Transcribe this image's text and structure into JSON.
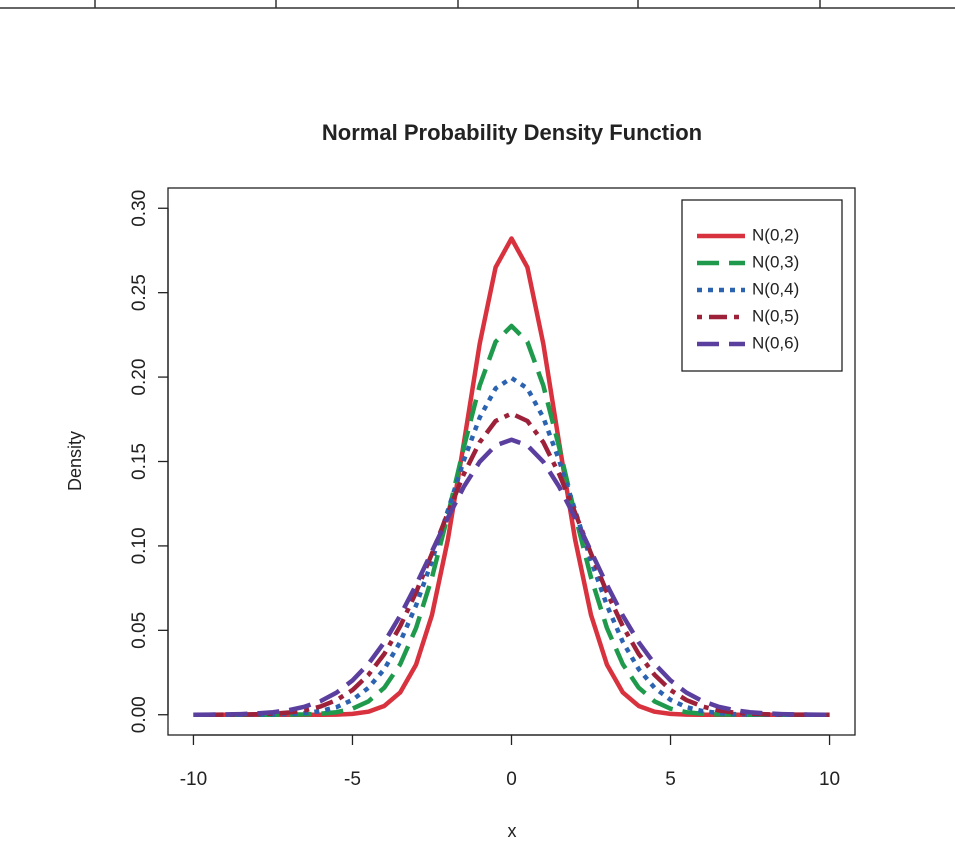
{
  "chart_data": {
    "type": "line",
    "title": "Normal Probability Density Function",
    "x_label": "x",
    "y_label": "Density",
    "x": [
      -10,
      -9.5,
      -9,
      -8.5,
      -8,
      -7.5,
      -7,
      -6.5,
      -6,
      -5.5,
      -5,
      -4.5,
      -4,
      -3.5,
      -3,
      -2.5,
      -2,
      -1.5,
      -1,
      -0.5,
      0,
      0.5,
      1,
      1.5,
      2,
      2.5,
      3,
      3.5,
      4,
      4.5,
      5,
      5.5,
      6,
      6.5,
      7,
      7.5,
      8,
      8.5,
      9,
      9.5,
      10
    ],
    "series": [
      {
        "name": "N(0,2)",
        "color": "#d8323f",
        "linestyle": "solid",
        "values": [
          0,
          0,
          0,
          0,
          0,
          0,
          0,
          0,
          0,
          0.0001,
          0.0005,
          0.0018,
          0.0052,
          0.0132,
          0.0297,
          0.0591,
          0.1038,
          0.1607,
          0.2197,
          0.265,
          0.2821,
          0.265,
          0.2197,
          0.1607,
          0.1038,
          0.0591,
          0.0297,
          0.0132,
          0.0052,
          0.0018,
          0.0005,
          0.0001,
          0,
          0,
          0,
          0,
          0,
          0,
          0,
          0,
          0
        ]
      },
      {
        "name": "N(0,3)",
        "color": "#1f9a4c",
        "linestyle": "longdash",
        "values": [
          0,
          0,
          0,
          0,
          0,
          0,
          0.0001,
          0.0002,
          0.0006,
          0.0015,
          0.0036,
          0.0079,
          0.016,
          0.0299,
          0.0514,
          0.0813,
          0.1183,
          0.1583,
          0.195,
          0.2209,
          0.2303,
          0.2209,
          0.195,
          0.1583,
          0.1183,
          0.0813,
          0.0514,
          0.0299,
          0.016,
          0.0079,
          0.0036,
          0.0015,
          0.0006,
          0.0002,
          0.0001,
          0,
          0,
          0,
          0,
          0,
          0
        ]
      },
      {
        "name": "N(0,4)",
        "color": "#2b63b0",
        "linestyle": "dotted",
        "values": [
          0,
          0,
          0,
          0,
          0.0001,
          0.0002,
          0.0004,
          0.001,
          0.0022,
          0.0045,
          0.0088,
          0.0159,
          0.027,
          0.0431,
          0.0648,
          0.0913,
          0.121,
          0.1506,
          0.176,
          0.1933,
          0.1995,
          0.1933,
          0.176,
          0.1506,
          0.121,
          0.0913,
          0.0648,
          0.0431,
          0.027,
          0.0159,
          0.0088,
          0.0045,
          0.0022,
          0.001,
          0.0004,
          0.0002,
          0.0001,
          0,
          0,
          0,
          0
        ]
      },
      {
        "name": "N(0,5)",
        "color": "#9c2139",
        "linestyle": "dotdash",
        "values": [
          0,
          0,
          0.0001,
          0.0001,
          0.0003,
          0.0006,
          0.0013,
          0.0026,
          0.0049,
          0.0087,
          0.0146,
          0.0236,
          0.036,
          0.0524,
          0.0725,
          0.0955,
          0.1196,
          0.1425,
          0.1614,
          0.174,
          0.1784,
          0.174,
          0.1614,
          0.1425,
          0.1196,
          0.0955,
          0.0725,
          0.0524,
          0.036,
          0.0236,
          0.0146,
          0.0087,
          0.0049,
          0.0026,
          0.0013,
          0.0006,
          0.0003,
          0.0001,
          0.0001,
          0,
          0
        ]
      },
      {
        "name": "N(0,6)",
        "color": "#5b3f9f",
        "linestyle": "longdash",
        "values": [
          0,
          0.0001,
          0.0002,
          0.0004,
          0.0008,
          0.0015,
          0.0027,
          0.0048,
          0.0081,
          0.0131,
          0.0203,
          0.0301,
          0.0429,
          0.0587,
          0.0769,
          0.0968,
          0.1167,
          0.135,
          0.1498,
          0.1595,
          0.1629,
          0.1595,
          0.1498,
          0.135,
          0.1167,
          0.0968,
          0.0769,
          0.0587,
          0.0429,
          0.0301,
          0.0203,
          0.0131,
          0.0081,
          0.0048,
          0.0027,
          0.0015,
          0.0008,
          0.0004,
          0.0002,
          0.0001,
          0
        ]
      }
    ],
    "xlim": [
      -10.8,
      10.8
    ],
    "ylim": [
      -0.012,
      0.312
    ],
    "xticks": [
      -10,
      -5,
      0,
      5,
      10
    ],
    "yticks": [
      {
        "value": 0,
        "label": "0.00"
      },
      {
        "value": 0.05,
        "label": "0.05"
      },
      {
        "value": 0.1,
        "label": "0.10"
      },
      {
        "value": 0.15,
        "label": "0.15"
      },
      {
        "value": 0.2,
        "label": "0.20"
      },
      {
        "value": 0.25,
        "label": "0.25"
      },
      {
        "value": 0.3,
        "label": "0.30"
      }
    ],
    "grid": false,
    "legend": "top-right"
  }
}
